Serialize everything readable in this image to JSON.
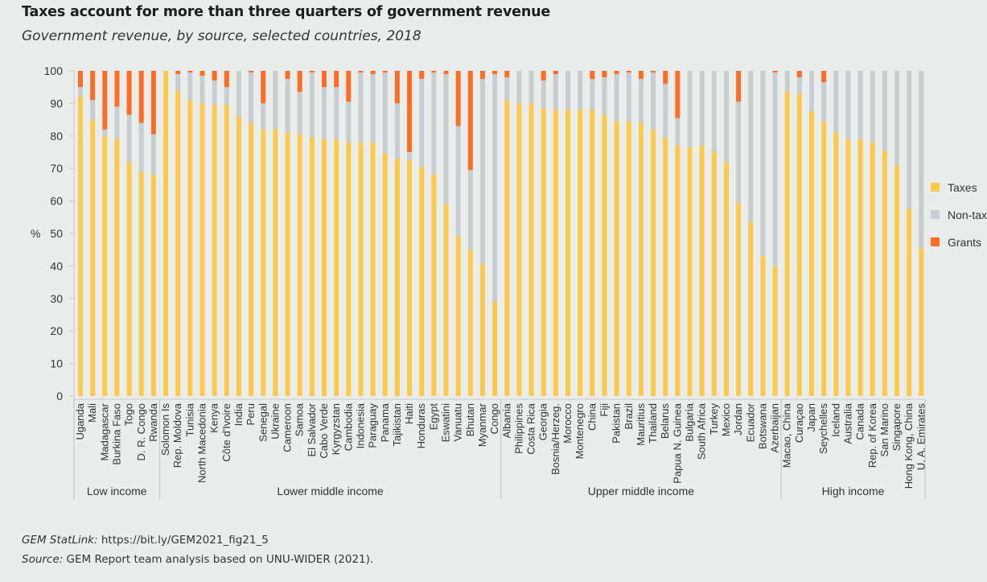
{
  "header": {
    "title": "Taxes account for more than three quarters of government revenue",
    "subtitle": "Government revenue, by source, selected countries, 2018"
  },
  "footer": {
    "statlink_label": "GEM StatLink:",
    "statlink_url": "https://bit.ly/GEM2021_fig21_5",
    "source_label": "Source:",
    "source_text": "GEM Report team analysis based on UNU-WIDER (2021)."
  },
  "chart_data": {
    "type": "bar",
    "stacked": true,
    "title": "Taxes account for more than three quarters of government revenue",
    "subtitle": "Government revenue, by source, selected countries, 2018",
    "xlabel": "",
    "ylabel": "%",
    "ylim": [
      0,
      100
    ],
    "yticks": [
      0,
      10,
      20,
      30,
      40,
      50,
      60,
      70,
      80,
      90,
      100
    ],
    "grid": false,
    "legend_position": "right",
    "colors": {
      "Taxes": "#fec84a",
      "Non-tax": "#c8cdcf",
      "Grants": "#ff6d24"
    },
    "groups": [
      {
        "name": "Low income",
        "count": 7
      },
      {
        "name": "Lower middle income",
        "count": 28
      },
      {
        "name": "Upper middle income",
        "count": 23
      },
      {
        "name": "High income",
        "count": 12
      }
    ],
    "categories": [
      "Uganda",
      "Mali",
      "Madagascar",
      "Burkina Faso",
      "Togo",
      "D. R. Congo",
      "Rwanda",
      "Solomon Is",
      "Rep. Moldova",
      "Tunisia",
      "North Macedonia",
      "Kenya",
      "Côte d'Ivoire",
      "India",
      "Peru",
      "Senegal",
      "Ukraine",
      "Cameroon",
      "Samoa",
      "El Salvador",
      "Cabo Verde",
      "Kyrgyzstan",
      "Cambodia",
      "Indonesia",
      "Paraguay",
      "Panama",
      "Tajikistan",
      "Haiti",
      "Honduras",
      "Egypt",
      "Eswatini",
      "Vanuatu",
      "Bhutan",
      "Myanmar",
      "Congo",
      "Albania",
      "Philippines",
      "Costa Rica",
      "Georgia",
      "Bosnia/Herzeg.",
      "Morocco",
      "Montenegro",
      "China",
      "Fiji",
      "Pakistan",
      "Brazil",
      "Mauritius",
      "Thailand",
      "Belarus",
      "Papua N. Guinea",
      "Bulgaria",
      "South Africa",
      "Turkey",
      "Mexico",
      "Jordan",
      "Ecuador",
      "Botswana",
      "Azerbaijan",
      "Macao, China",
      "Curaçao",
      "Japan",
      "Seychelles",
      "Iceland",
      "Australia",
      "Canada",
      "Rep. of Korea",
      "San Marino",
      "Singapore",
      "Hong Kong, China",
      "U. A. Emirates"
    ],
    "series": [
      {
        "name": "Taxes",
        "values": [
          92,
          85,
          80,
          79,
          72,
          69,
          68,
          100,
          94,
          91,
          90,
          89.5,
          89.5,
          86,
          84,
          82,
          82,
          81,
          80.5,
          79.5,
          79,
          79,
          78,
          78,
          78,
          74.5,
          73,
          72.5,
          70.5,
          68,
          59,
          49,
          45,
          40.5,
          29,
          91,
          90,
          90,
          88.5,
          88,
          88,
          88,
          88,
          86.5,
          84.5,
          84.5,
          84,
          82,
          79.5,
          77,
          76.5,
          77,
          75,
          72,
          59.5,
          53.5,
          43,
          40,
          93.5,
          93,
          87.5,
          84.5,
          81,
          79,
          79,
          78,
          75.5,
          71,
          57.5,
          45.5
        ]
      },
      {
        "name": "Non-tax",
        "values": [
          3,
          6,
          2,
          10,
          14.5,
          15,
          12.5,
          0,
          5,
          8.5,
          8.5,
          7.5,
          5.5,
          14,
          15.5,
          8,
          18,
          16.5,
          13,
          20,
          16,
          16,
          12.5,
          21.5,
          21,
          25,
          17,
          2.5,
          27,
          31.5,
          40,
          34,
          24.5,
          57,
          70,
          7,
          10,
          10,
          8.5,
          11,
          12,
          12,
          9.5,
          11.5,
          14.5,
          15,
          13.5,
          17.5,
          16.5,
          8.5,
          23.5,
          23,
          25,
          28,
          31,
          46.5,
          57,
          59.5,
          6.5,
          5,
          12.5,
          12,
          19,
          21,
          21,
          22,
          24.5,
          29,
          42.5,
          54.5
        ]
      },
      {
        "name": "Grants",
        "values": [
          5,
          9,
          18,
          11,
          13.5,
          16,
          19.5,
          0,
          1,
          0.5,
          1.5,
          3,
          5,
          0,
          0.5,
          10,
          0,
          2.5,
          6.5,
          0.5,
          5,
          5,
          9.5,
          0.5,
          1,
          0.5,
          10,
          25,
          2.5,
          0.5,
          1,
          17,
          30.5,
          2.5,
          1,
          2,
          0,
          0,
          3,
          1,
          0,
          0,
          2.5,
          2,
          1,
          0.5,
          2.5,
          0.5,
          4,
          14.5,
          0,
          0,
          0,
          0,
          9.5,
          0,
          0,
          0.5,
          0,
          2,
          0,
          3.5,
          0,
          0,
          0,
          0,
          0,
          0,
          0,
          0
        ]
      }
    ]
  }
}
